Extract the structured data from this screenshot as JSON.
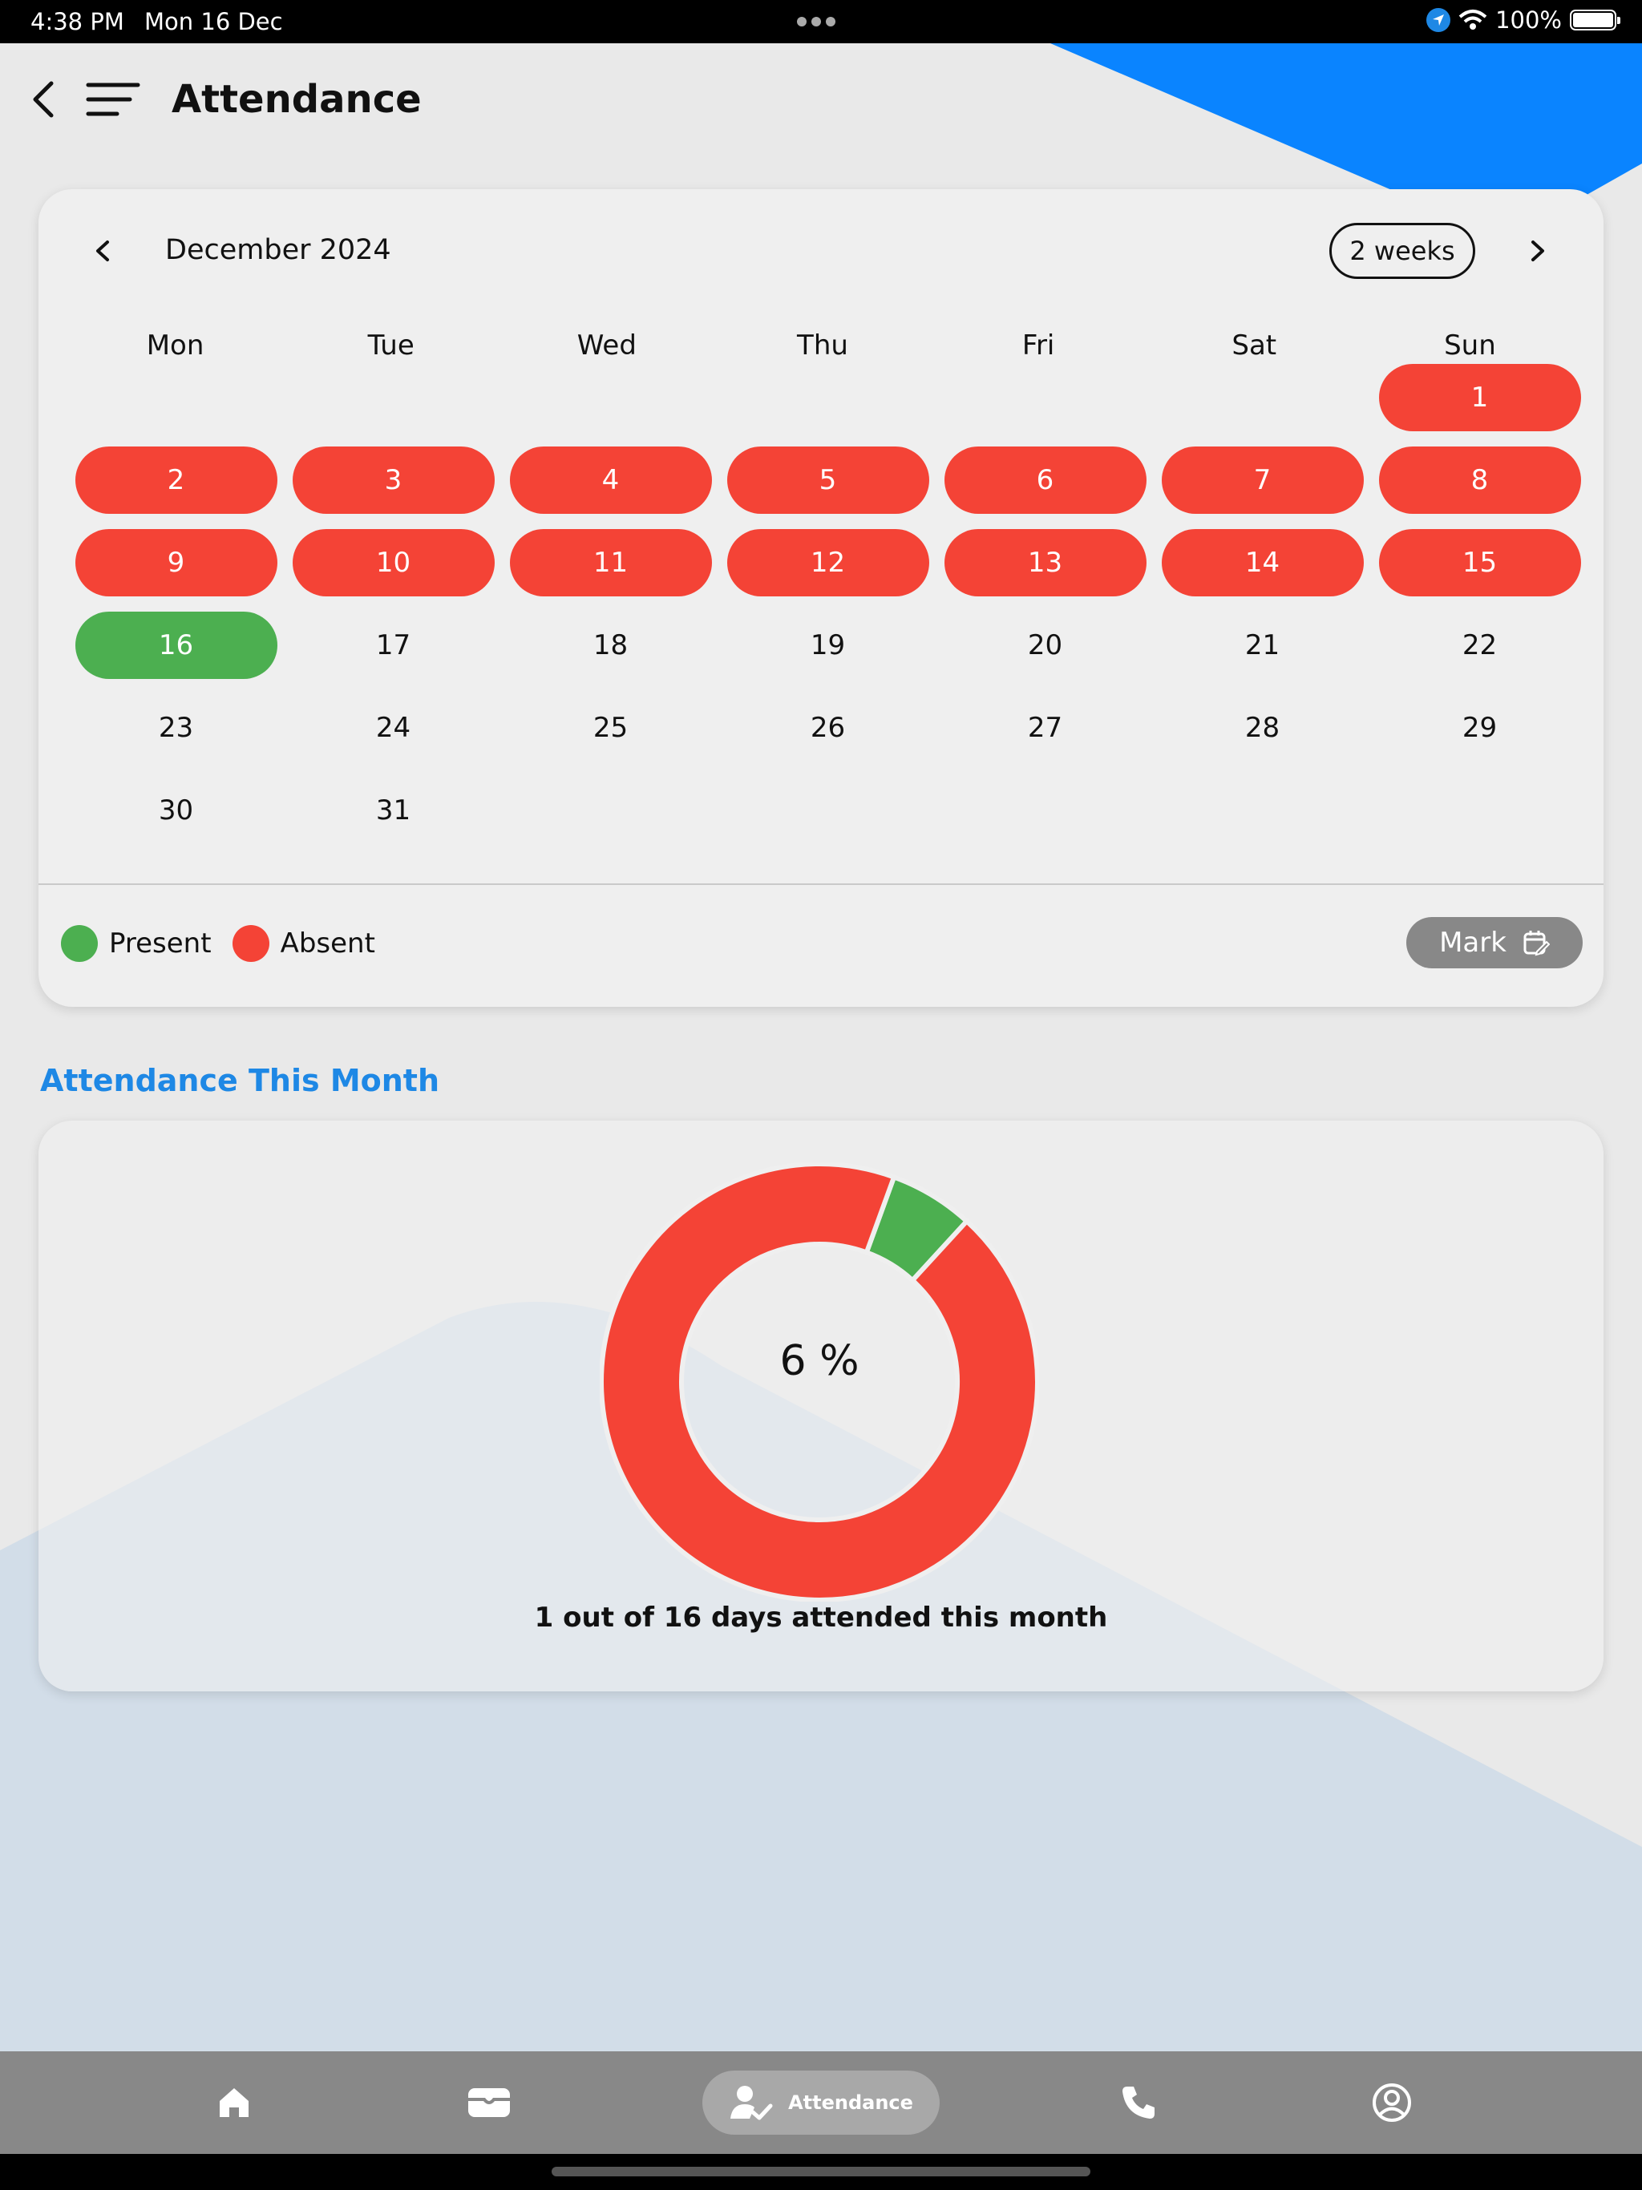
{
  "status_bar": {
    "time": "4:38 PM",
    "date": "Mon 16 Dec",
    "battery": "100%"
  },
  "header": {
    "title": "Attendance"
  },
  "calendar": {
    "month_label": "December 2024",
    "format_button": "2 weeks",
    "weekdays": [
      "Mon",
      "Tue",
      "Wed",
      "Thu",
      "Fri",
      "Sat",
      "Sun"
    ],
    "days": [
      {
        "label": "1",
        "status": "absent"
      },
      {
        "label": "2",
        "status": "absent"
      },
      {
        "label": "3",
        "status": "absent"
      },
      {
        "label": "4",
        "status": "absent"
      },
      {
        "label": "5",
        "status": "absent"
      },
      {
        "label": "6",
        "status": "absent"
      },
      {
        "label": "7",
        "status": "absent"
      },
      {
        "label": "8",
        "status": "absent"
      },
      {
        "label": "9",
        "status": "absent"
      },
      {
        "label": "10",
        "status": "absent"
      },
      {
        "label": "11",
        "status": "absent"
      },
      {
        "label": "12",
        "status": "absent"
      },
      {
        "label": "13",
        "status": "absent"
      },
      {
        "label": "14",
        "status": "absent"
      },
      {
        "label": "15",
        "status": "absent"
      },
      {
        "label": "16",
        "status": "present"
      },
      {
        "label": "17",
        "status": "none"
      },
      {
        "label": "18",
        "status": "none"
      },
      {
        "label": "19",
        "status": "none"
      },
      {
        "label": "20",
        "status": "none"
      },
      {
        "label": "21",
        "status": "none"
      },
      {
        "label": "22",
        "status": "none"
      },
      {
        "label": "23",
        "status": "none"
      },
      {
        "label": "24",
        "status": "none"
      },
      {
        "label": "25",
        "status": "none"
      },
      {
        "label": "26",
        "status": "none"
      },
      {
        "label": "27",
        "status": "none"
      },
      {
        "label": "28",
        "status": "none"
      },
      {
        "label": "29",
        "status": "none"
      },
      {
        "label": "30",
        "status": "none"
      },
      {
        "label": "31",
        "status": "none"
      }
    ],
    "first_weekday_index": 6,
    "legend": {
      "present": "Present",
      "absent": "Absent"
    },
    "mark_button": "Mark"
  },
  "colors": {
    "present": "#4caf50",
    "absent": "#f44336",
    "accent": "#1e88e5"
  },
  "summary": {
    "section_title": "Attendance This Month",
    "percent_label": "6 %",
    "caption": "1 out of 16 days attended this month"
  },
  "chart_data": {
    "type": "pie",
    "slices": [
      {
        "label": "Present",
        "value": 1,
        "color": "#4caf50"
      },
      {
        "label": "Absent",
        "value": 15,
        "color": "#f44336"
      }
    ]
  },
  "bottom_nav": {
    "items": [
      {
        "icon": "home-icon"
      },
      {
        "icon": "wallet-icon"
      },
      {
        "icon": "attendance-icon",
        "label": "Attendance",
        "active": true
      },
      {
        "icon": "phone-icon"
      },
      {
        "icon": "profile-icon"
      }
    ]
  }
}
